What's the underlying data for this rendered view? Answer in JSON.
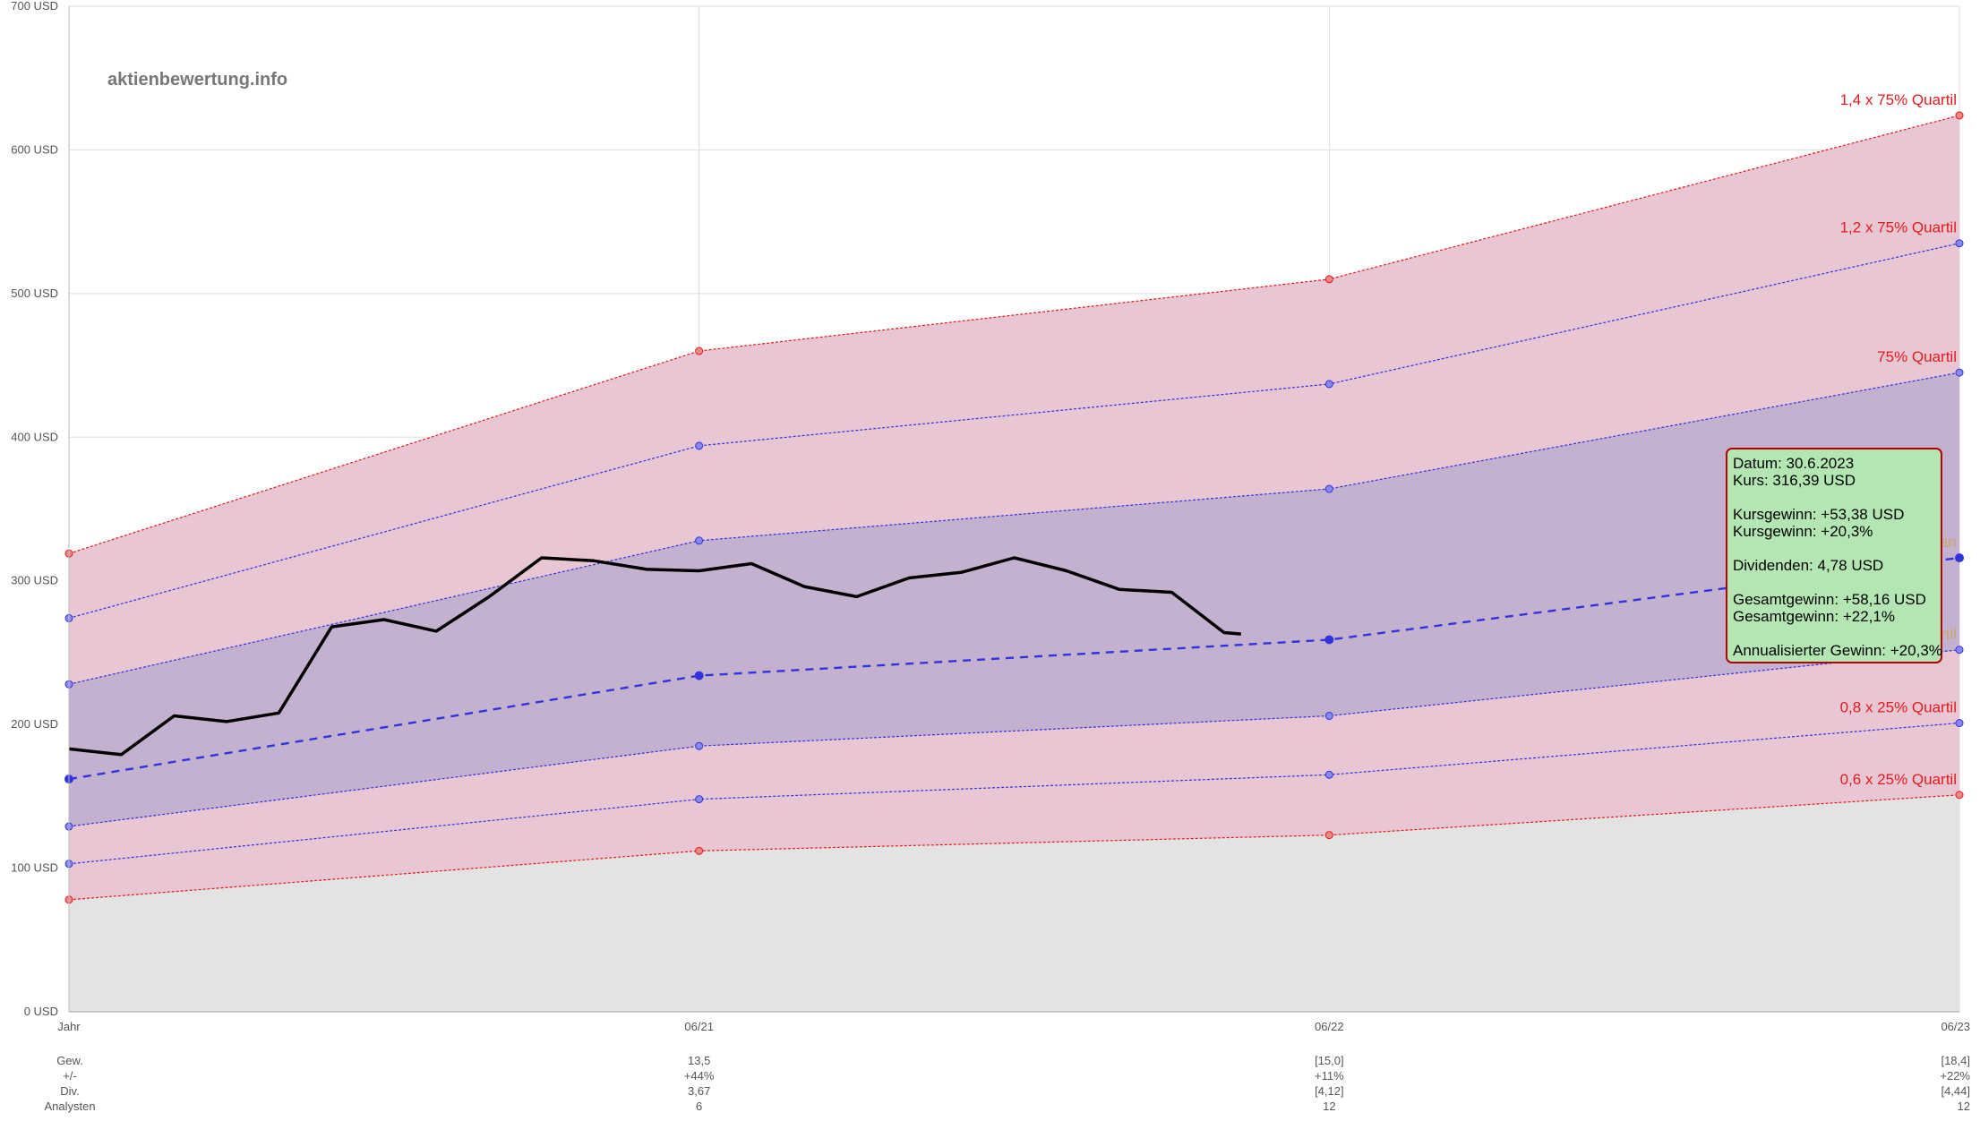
{
  "watermark": "aktienbewertung.info",
  "colors": {
    "outer_fill": "#e8c6d3",
    "inner_fill": "#c4b1cf",
    "lower_fill": "#e3e3e3",
    "red_line": "#e31a1c",
    "blue_line": "#3333dd",
    "price_line": "#000000",
    "grid": "#dddddd"
  },
  "tooltip": {
    "datum": "Datum: 30.6.2023",
    "kurs": "Kurs: 316,39 USD",
    "kursgewinn_abs": "Kursgewinn: +53,38 USD",
    "kursgewinn_pct": "Kursgewinn: +20,3%",
    "dividenden": "Dividenden: 4,78 USD",
    "gesamtgewinn_abs": "Gesamtgewinn: +58,16 USD",
    "gesamtgewinn_pct": "Gesamtgewinn: +22,1%",
    "annualisiert": "Annualisierter Gewinn: +20,3%"
  },
  "chart_data": {
    "type": "line",
    "y_unit": "USD",
    "ylim": [
      0,
      700
    ],
    "y_ticks": [
      "0 USD",
      "100 USD",
      "200 USD",
      "300 USD",
      "400 USD",
      "500 USD",
      "600 USD",
      "700 USD"
    ],
    "x_ticks": [
      "Jahr",
      "06/21",
      "06/22",
      "06/23"
    ],
    "x_range": [
      2020.5,
      2023.5
    ],
    "grid": true,
    "series": [
      {
        "name": "1,4 x 75% Quartil",
        "label_visible": true,
        "style": "red-dotted",
        "x": [
          2020.5,
          2021.5,
          2022.5,
          2023.5
        ],
        "values": [
          319,
          460,
          510,
          624
        ]
      },
      {
        "name": "1,2 x 75% Quartil",
        "label_visible": true,
        "style": "blue-dotted",
        "x": [
          2020.5,
          2021.5,
          2022.5,
          2023.5
        ],
        "values": [
          274,
          394,
          437,
          535
        ]
      },
      {
        "name": "75% Quartil",
        "label_visible": true,
        "style": "blue-dotted",
        "x": [
          2020.5,
          2021.5,
          2022.5,
          2023.5
        ],
        "values": [
          228,
          328,
          364,
          445
        ]
      },
      {
        "name": "Median",
        "label_visible": true,
        "style": "blue-dashed",
        "x": [
          2020.5,
          2021.5,
          2022.5,
          2023.5
        ],
        "values": [
          162,
          234,
          259,
          316
        ]
      },
      {
        "name": "25% Quartil",
        "label_visible": true,
        "style": "blue-dotted",
        "x": [
          2020.5,
          2021.5,
          2022.5,
          2023.5
        ],
        "values": [
          129,
          185,
          206,
          252
        ]
      },
      {
        "name": "0,8 x 25% Quartil",
        "label_visible": true,
        "style": "blue-dotted",
        "x": [
          2020.5,
          2021.5,
          2022.5,
          2023.5
        ],
        "values": [
          103,
          148,
          165,
          201
        ]
      },
      {
        "name": "0,6 x 25% Quartil",
        "label_visible": true,
        "style": "red-dotted",
        "x": [
          2020.5,
          2021.5,
          2022.5,
          2023.5
        ],
        "values": [
          78,
          112,
          123,
          151
        ]
      }
    ],
    "price": {
      "x": [
        "2020-06-30",
        "2020-07-31",
        "2020-08-31",
        "2020-09-30",
        "2020-10-31",
        "2020-11-30",
        "2020-12-31",
        "2021-01-31",
        "2021-02-28",
        "2021-03-31",
        "2021-04-30",
        "2021-05-31",
        "2021-06-30",
        "2021-07-31",
        "2021-08-31",
        "2021-09-30",
        "2021-10-31",
        "2021-11-30",
        "2021-12-31",
        "2022-01-31",
        "2022-02-28",
        "2022-03-31",
        "2022-04-30",
        "2022-05-31"
      ],
      "values": [
        183,
        179,
        206,
        202,
        208,
        268,
        273,
        265,
        289,
        316,
        314,
        308,
        307,
        312,
        296,
        289,
        302,
        306,
        316,
        307,
        294,
        292,
        264,
        263
      ],
      "x_num": [
        2020.5,
        2020.583,
        2020.667,
        2020.75,
        2020.833,
        2020.917,
        2021.0,
        2021.083,
        2021.167,
        2021.25,
        2021.333,
        2021.417,
        2021.5,
        2021.583,
        2021.667,
        2021.75,
        2021.833,
        2021.917,
        2022.0,
        2022.083,
        2022.167,
        2022.25,
        2022.333,
        2022.36
      ]
    },
    "table": {
      "row_labels": [
        "Gew.",
        "+/-",
        "Div.",
        "Analysten"
      ],
      "columns": [
        {
          "x": 2020.5,
          "values": [
            "",
            "",
            "",
            ""
          ]
        },
        {
          "x": 2021.5,
          "values": [
            "13,5",
            "+44%",
            "3,67",
            "6"
          ]
        },
        {
          "x": 2022.5,
          "values": [
            "[15,0]",
            "+11%",
            "[4,12]",
            "12"
          ]
        },
        {
          "x": 2023.5,
          "values": [
            "[18,4]",
            "+22%",
            "[4,44]",
            "12"
          ]
        }
      ]
    }
  }
}
